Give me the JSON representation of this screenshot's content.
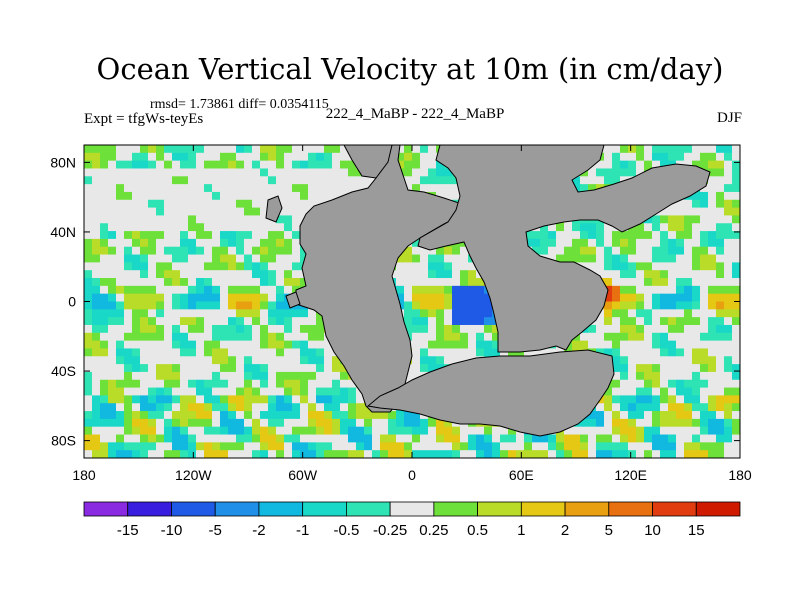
{
  "chart_data": {
    "type": "heatmap",
    "title": "Ocean Vertical Velocity at 10m (in cm/day)",
    "stats_label": "rmsd= 1.73861 diff= 0.0354115",
    "experiment_label": "Expt = tfgWs-teyEs",
    "difference_label": "222_4_MaBP - 222_4_MaBP",
    "season_label": "DJF",
    "xlim": [
      -180,
      180
    ],
    "ylim": [
      -90,
      90
    ],
    "x_ticks": [
      {
        "value": -180,
        "label": "180"
      },
      {
        "value": -120,
        "label": "120W"
      },
      {
        "value": -60,
        "label": "60W"
      },
      {
        "value": 0,
        "label": "0"
      },
      {
        "value": 60,
        "label": "60E"
      },
      {
        "value": 120,
        "label": "120E"
      },
      {
        "value": 180,
        "label": "180"
      }
    ],
    "y_ticks": [
      {
        "value": 80,
        "label": "80N"
      },
      {
        "value": 40,
        "label": "40N"
      },
      {
        "value": 0,
        "label": "0"
      },
      {
        "value": -40,
        "label": "40S"
      },
      {
        "value": -80,
        "label": "80S"
      }
    ],
    "levels": [
      "-15",
      "-10",
      "-5",
      "-2",
      "-1",
      "-0.5",
      "-0.25",
      "0.25",
      "0.5",
      "1",
      "2",
      "5",
      "10",
      "15"
    ],
    "colors": [
      "#8a2be2",
      "#3a1ee0",
      "#1e5ae6",
      "#1f8fe8",
      "#11b8e0",
      "#19d8c8",
      "#2fe4b4",
      "#e8e8e8",
      "#6ee03a",
      "#b8dc28",
      "#e4c814",
      "#e8a010",
      "#e87010",
      "#e03c10",
      "#d01a00"
    ],
    "land_color": "#9b9b9b"
  }
}
